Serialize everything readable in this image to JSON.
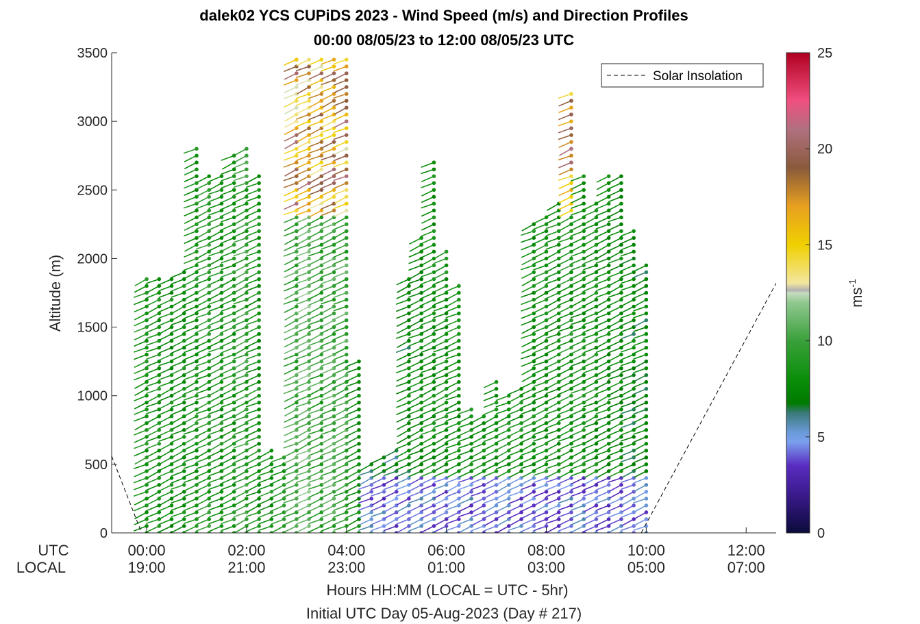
{
  "chart_data": {
    "type": "scatter",
    "title": "dalek02 YCS CUPiDS 2023 - Wind Speed (m/s) and Direction Profiles",
    "subtitle": "00:00 08/05/23 to 12:00 08/05/23  UTC",
    "ylabel": "Altitude (m)",
    "xlabel": "Hours HH:MM  (LOCAL = UTC - 5hr)",
    "xlabel2": "Initial UTC Day 05-Aug-2023 (Day # 217)",
    "x_row_label_utc": "UTC",
    "x_row_label_local": "LOCAL",
    "xlim": [
      -0.7,
      12.6
    ],
    "ylim": [
      0,
      3500
    ],
    "x_ticks_utc": [
      "00:00",
      "02:00",
      "04:00",
      "06:00",
      "08:00",
      "10:00",
      "12:00"
    ],
    "x_ticks_local": [
      "19:00",
      "21:00",
      "23:00",
      "01:00",
      "03:00",
      "05:00",
      "07:00"
    ],
    "x_tick_positions_hours": [
      0,
      2,
      4,
      6,
      8,
      10,
      12
    ],
    "y_ticks": [
      "0",
      "500",
      "1000",
      "1500",
      "2000",
      "2500",
      "3000",
      "3500"
    ],
    "y_tick_values": [
      0,
      500,
      1000,
      1500,
      2000,
      2500,
      3000,
      3500
    ],
    "colorbar": {
      "label": "ms",
      "label_exponent": "-1",
      "range": [
        0,
        25
      ],
      "ticks": [
        "0",
        "5",
        "10",
        "15",
        "20",
        "25"
      ]
    },
    "legend": {
      "entries": [
        "Solar Insolation"
      ],
      "placement": "top-right"
    },
    "series": [
      {
        "name": "Solar Insolation",
        "style": "dashed",
        "x": [
          -0.7,
          -0.1,
          9.9,
          12.6
        ],
        "y": [
          560,
          0,
          0,
          1820
        ]
      }
    ],
    "profiles": [
      {
        "t": 0.0,
        "top": 1860,
        "w": 8.5
      },
      {
        "t": 0.25,
        "top": 1880,
        "w": 8.5
      },
      {
        "t": 0.5,
        "top": 1880,
        "w": 8.0
      },
      {
        "t": 0.75,
        "top": 1920,
        "w": 8.0
      },
      {
        "t": 1.0,
        "top": 2840,
        "w": 8.5
      },
      {
        "t": 1.25,
        "top": 2640,
        "w": 9.0
      },
      {
        "t": 1.5,
        "top": 2600,
        "w": 8.5
      },
      {
        "t": 1.75,
        "top": 2780,
        "w": 8.5
      },
      {
        "t": 2.0,
        "top": 2800,
        "w": 9.5
      },
      {
        "t": 2.25,
        "top": 2600,
        "w": 8.0
      },
      {
        "t": 2.5,
        "top": 600,
        "w": 8.5
      },
      {
        "t": 2.75,
        "top": 580,
        "w": 8.5
      },
      {
        "t": 3.0,
        "top": 3480,
        "w": 10.0
      },
      {
        "t": 3.25,
        "top": 3460,
        "w": 11.0
      },
      {
        "t": 3.5,
        "top": 3450,
        "w": 9.5
      },
      {
        "t": 3.75,
        "top": 3450,
        "w": 10.0
      },
      {
        "t": 4.0,
        "top": 3460,
        "w": 10.0
      },
      {
        "t": 4.25,
        "top": 1280,
        "w": 7.5
      },
      {
        "t": 4.5,
        "top": 520,
        "w": 6.5
      },
      {
        "t": 4.75,
        "top": 560,
        "w": 6.5
      },
      {
        "t": 5.0,
        "top": 600,
        "w": 6.0
      },
      {
        "t": 5.25,
        "top": 1860,
        "w": 7.0
      },
      {
        "t": 5.5,
        "top": 2160,
        "w": 7.5
      },
      {
        "t": 5.75,
        "top": 2740,
        "w": 8.0
      },
      {
        "t": 6.0,
        "top": 2070,
        "w": 8.0
      },
      {
        "t": 6.25,
        "top": 1820,
        "w": 8.0
      },
      {
        "t": 6.5,
        "top": 920,
        "w": 8.0
      },
      {
        "t": 6.75,
        "top": 890,
        "w": 8.0
      },
      {
        "t": 7.0,
        "top": 1100,
        "w": 8.0
      },
      {
        "t": 7.25,
        "top": 1000,
        "w": 8.0
      },
      {
        "t": 7.5,
        "top": 1060,
        "w": 8.0
      },
      {
        "t": 7.75,
        "top": 2260,
        "w": 8.0
      },
      {
        "t": 8.0,
        "top": 2320,
        "w": 8.0
      },
      {
        "t": 8.25,
        "top": 2440,
        "w": 8.0
      },
      {
        "t": 8.5,
        "top": 3240,
        "w": 8.5
      },
      {
        "t": 8.75,
        "top": 2600,
        "w": 8.0
      },
      {
        "t": 9.0,
        "top": 2400,
        "w": 8.0
      },
      {
        "t": 9.25,
        "top": 2600,
        "w": 7.5
      },
      {
        "t": 9.5,
        "top": 2600,
        "w": 7.5
      },
      {
        "t": 9.75,
        "top": 2240,
        "w": 7.0
      },
      {
        "t": 10.0,
        "top": 1960,
        "w": 7.0
      }
    ]
  }
}
